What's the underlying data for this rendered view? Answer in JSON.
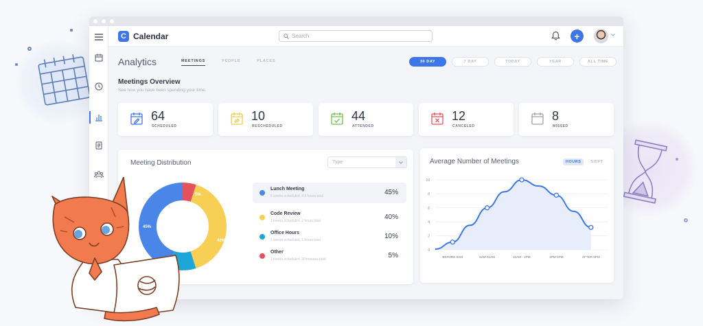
{
  "app": {
    "name": "Calendar",
    "logo_letter": "C"
  },
  "search": {
    "placeholder": "Search"
  },
  "sidebar": {
    "items": [
      "menu-icon",
      "calendar-icon",
      "clock-icon",
      "analytics-icon",
      "document-icon",
      "people-icon"
    ],
    "active": "analytics-icon"
  },
  "page": {
    "title": "Analytics",
    "tabs": [
      "MEETINGS",
      "PEOPLE",
      "PLACES"
    ],
    "active_tab": "MEETINGS",
    "ranges": [
      "30 DAY",
      "7 DAY",
      "TODAY",
      "YEAR",
      "ALL TIME"
    ],
    "active_range": "30 DAY"
  },
  "overview": {
    "title": "Meetings Overview",
    "subtitle": "See how you have been spending your time.",
    "stats": [
      {
        "value": "64",
        "label": "SCHEDULED",
        "icon": "calendar-edit-icon",
        "color": "#3c76e8"
      },
      {
        "value": "10",
        "label": "RESCHEDULED",
        "icon": "calendar-reschedule-icon",
        "color": "#f2c94c"
      },
      {
        "value": "44",
        "label": "ATTENDED",
        "icon": "calendar-check-icon",
        "color": "#6fbf4a"
      },
      {
        "value": "12",
        "label": "CANCELED",
        "icon": "calendar-cancel-icon",
        "color": "#e4525e"
      },
      {
        "value": "8",
        "label": "MISSED",
        "icon": "calendar-missed-icon",
        "color": "#9ba0ab"
      }
    ]
  },
  "distribution": {
    "title": "Meeting Distribution",
    "type_placeholder": "Type",
    "items": [
      {
        "name": "Lunch Meeting",
        "detail": "5 weeks scheduled, 4.5 hours total",
        "pct": "45%",
        "color": "#4a86e8"
      },
      {
        "name": "Code Review",
        "detail": "1 weeks scheduled, 2 hours total",
        "pct": "40%",
        "color": "#f6cf54"
      },
      {
        "name": "Office Hours",
        "detail": "1 weeks scheduled, 1 hours total",
        "pct": "10%",
        "color": "#1fa6d9"
      },
      {
        "name": "Other",
        "detail": "1 weeks scheduled, 30 minutes total",
        "pct": "5%",
        "color": "#e4525e"
      }
    ],
    "donut_labels": [
      "45%",
      "40%",
      "10%",
      "5%"
    ]
  },
  "average": {
    "title": "Average Number of Meetings",
    "toggle": [
      "HOURS",
      "SHIFT"
    ],
    "active_toggle": "HOURS"
  },
  "chart_data": {
    "type": "area",
    "title": "Average Number of Meetings",
    "categories": [
      "BEFORE 8AM",
      "8AM-11AM",
      "11AM - 1PM",
      "1PM-5PM",
      "AFTER 5PM"
    ],
    "x": [
      0,
      0.5,
      1,
      1.5,
      2,
      2.5,
      3,
      3.5,
      4,
      4.5
    ],
    "y": [
      0.1,
      1.1,
      3.5,
      6,
      8.3,
      10,
      9.1,
      7.8,
      5.5,
      3.2
    ],
    "points_x": [
      0.5,
      1.5,
      2.5,
      3.5,
      4.5
    ],
    "points_y": [
      1.1,
      6,
      10,
      7.8,
      3.2
    ],
    "yticks": [
      0,
      2,
      4,
      6,
      8,
      10
    ],
    "ylim": [
      0,
      10
    ],
    "xlim": [
      0,
      5
    ],
    "color": "#3c76e8",
    "fill": "#e7edfb"
  }
}
